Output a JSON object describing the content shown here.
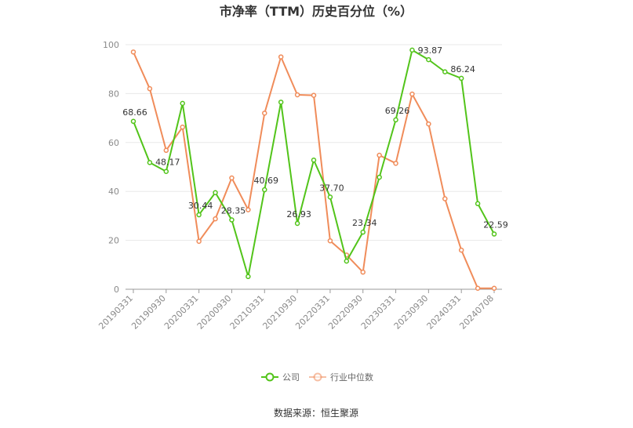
{
  "chart_data": {
    "type": "line",
    "title": "市净率（TTM）历史百分位（%）",
    "xlabel": "",
    "ylabel": "",
    "ylim": [
      0,
      100
    ],
    "yticks": [
      0,
      20,
      40,
      60,
      80,
      100
    ],
    "grid": true,
    "legend_position": "bottom",
    "x": [
      "20190331",
      "20190630",
      "20190930",
      "20191231",
      "20200331",
      "20200630",
      "20200930",
      "20201231",
      "20210331",
      "20210630",
      "20210930",
      "20211231",
      "20220331",
      "20220630",
      "20220930",
      "20221231",
      "20230331",
      "20230630",
      "20230930",
      "20231231",
      "20240331",
      "20240630",
      "20240708"
    ],
    "x_tick_labels": [
      "20190331",
      "20190930",
      "20200331",
      "20200930",
      "20210331",
      "20210930",
      "20220331",
      "20220930",
      "20230331",
      "20230930",
      "20240331",
      "20240708"
    ],
    "series": [
      {
        "name": "公司",
        "color": "#52c41a",
        "values": [
          68.66,
          51.8,
          48.17,
          76.0,
          30.44,
          39.5,
          28.35,
          5.2,
          40.69,
          76.5,
          26.93,
          52.8,
          37.7,
          11.5,
          23.34,
          45.8,
          69.26,
          97.8,
          93.87,
          88.9,
          86.24,
          35.0,
          22.59
        ],
        "labels": [
          "68.66",
          "",
          "48.17",
          "",
          "30.44",
          "",
          "28.35",
          "",
          "40.69",
          "",
          "26.93",
          "",
          "37.70",
          "",
          "23.34",
          "",
          "69.26",
          "",
          "93.87",
          "",
          "86.24",
          "",
          "22.59"
        ]
      },
      {
        "name": "行业中位数",
        "color": "#f08c5a",
        "values": [
          97.0,
          82.0,
          56.8,
          66.3,
          19.6,
          28.8,
          45.5,
          32.5,
          72.0,
          95.0,
          79.5,
          79.3,
          19.8,
          14.0,
          7.0,
          54.8,
          51.5,
          79.8,
          67.6,
          37.0,
          16.0,
          0.4,
          0.4
        ]
      }
    ]
  },
  "source": "数据来源：恒生聚源"
}
